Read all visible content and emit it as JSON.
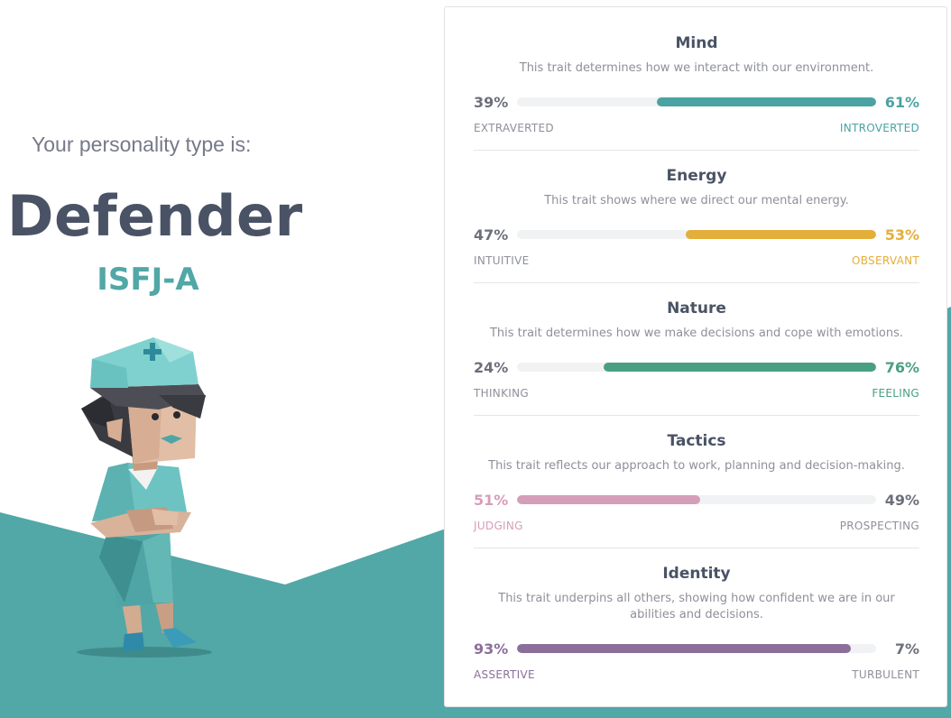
{
  "header": {
    "intro": "Your personality type is:",
    "type_name": "Defender",
    "type_code": "ISFJ-A"
  },
  "colors": {
    "teal_background": "#52a7a7",
    "heading": "#4a5365",
    "mind": "#4aa3a2",
    "energy": "#e4ae3a",
    "nature": "#4a9f82",
    "tactics": "#d59eb8",
    "identity": "#8b6f9a",
    "neutral_text": "#6d6f7a",
    "track": "#f1f2f4"
  },
  "illustration": {
    "name": "defender-nurse-character"
  },
  "traits": [
    {
      "title": "Mind",
      "description": "This trait determines how we interact with our environment.",
      "left_percent": "39%",
      "right_percent": "61%",
      "left_label": "EXTRAVERTED",
      "right_label": "INTROVERTED",
      "dominant": "right",
      "value": 61,
      "color": "#4aa3a2"
    },
    {
      "title": "Energy",
      "description": "This trait shows where we direct our mental energy.",
      "left_percent": "47%",
      "right_percent": "53%",
      "left_label": "INTUITIVE",
      "right_label": "OBSERVANT",
      "dominant": "right",
      "value": 53,
      "color": "#e4ae3a"
    },
    {
      "title": "Nature",
      "description": "This trait determines how we make decisions and cope with emotions.",
      "left_percent": "24%",
      "right_percent": "76%",
      "left_label": "THINKING",
      "right_label": "FEELING",
      "dominant": "right",
      "value": 76,
      "color": "#4a9f82"
    },
    {
      "title": "Tactics",
      "description": "This trait reflects our approach to work, planning and decision-making.",
      "left_percent": "51%",
      "right_percent": "49%",
      "left_label": "JUDGING",
      "right_label": "PROSPECTING",
      "dominant": "left",
      "value": 51,
      "color": "#d59eb8"
    },
    {
      "title": "Identity",
      "description": "This trait underpins all others, showing how confident we are in our abilities and decisions.",
      "left_percent": "93%",
      "right_percent": "7%",
      "left_label": "ASSERTIVE",
      "right_label": "TURBULENT",
      "dominant": "left",
      "value": 93,
      "color": "#8b6f9a"
    }
  ]
}
